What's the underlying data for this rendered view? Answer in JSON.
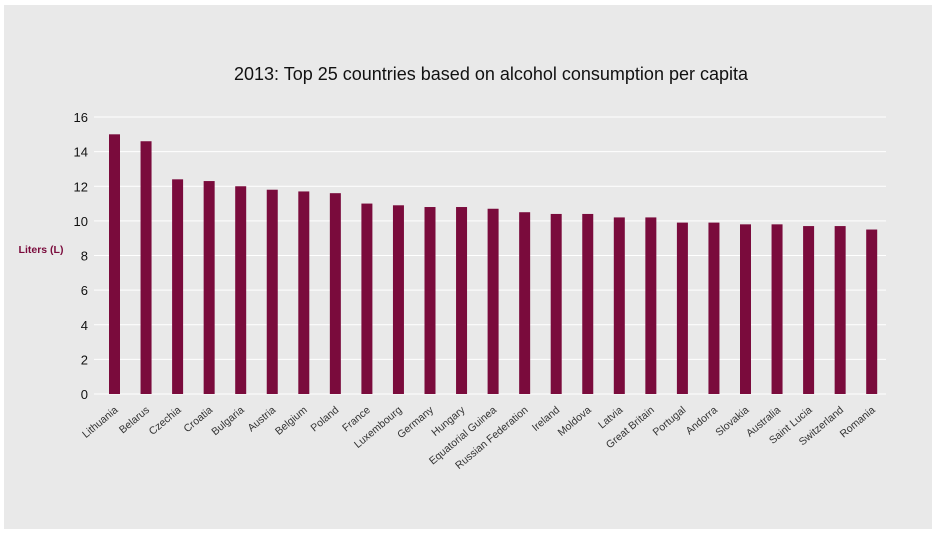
{
  "chart_data": {
    "type": "bar",
    "title": "2013: Top 25 countries based on alcohol consumption per capita",
    "xlabel": "",
    "ylabel": "Liters (L)",
    "ylim": [
      0,
      16
    ],
    "yticks": [
      0,
      2,
      4,
      6,
      8,
      10,
      12,
      14,
      16
    ],
    "grid": true,
    "legend": "none",
    "bar_color": "#7a0b3c",
    "categories": [
      "Lithuania",
      "Belarus",
      "Czechia",
      "Croatia",
      "Bulgaria",
      "Austria",
      "Belgium",
      "Poland",
      "France",
      "Luxembourg",
      "Germany",
      "Hungary",
      "Equatorial Guinea",
      "Russian Federation",
      "Ireland",
      "Moldova",
      "Latvia",
      "Great Britain",
      "Portugal",
      "Andorra",
      "Slovakia",
      "Australia",
      "Saint Lucia",
      "Switzerland",
      "Romania"
    ],
    "values": [
      15.0,
      14.6,
      12.4,
      12.3,
      12.0,
      11.8,
      11.7,
      11.6,
      11.0,
      10.9,
      10.8,
      10.8,
      10.7,
      10.5,
      10.4,
      10.4,
      10.2,
      10.2,
      9.9,
      9.9,
      9.8,
      9.8,
      9.7,
      9.7,
      9.5
    ]
  }
}
